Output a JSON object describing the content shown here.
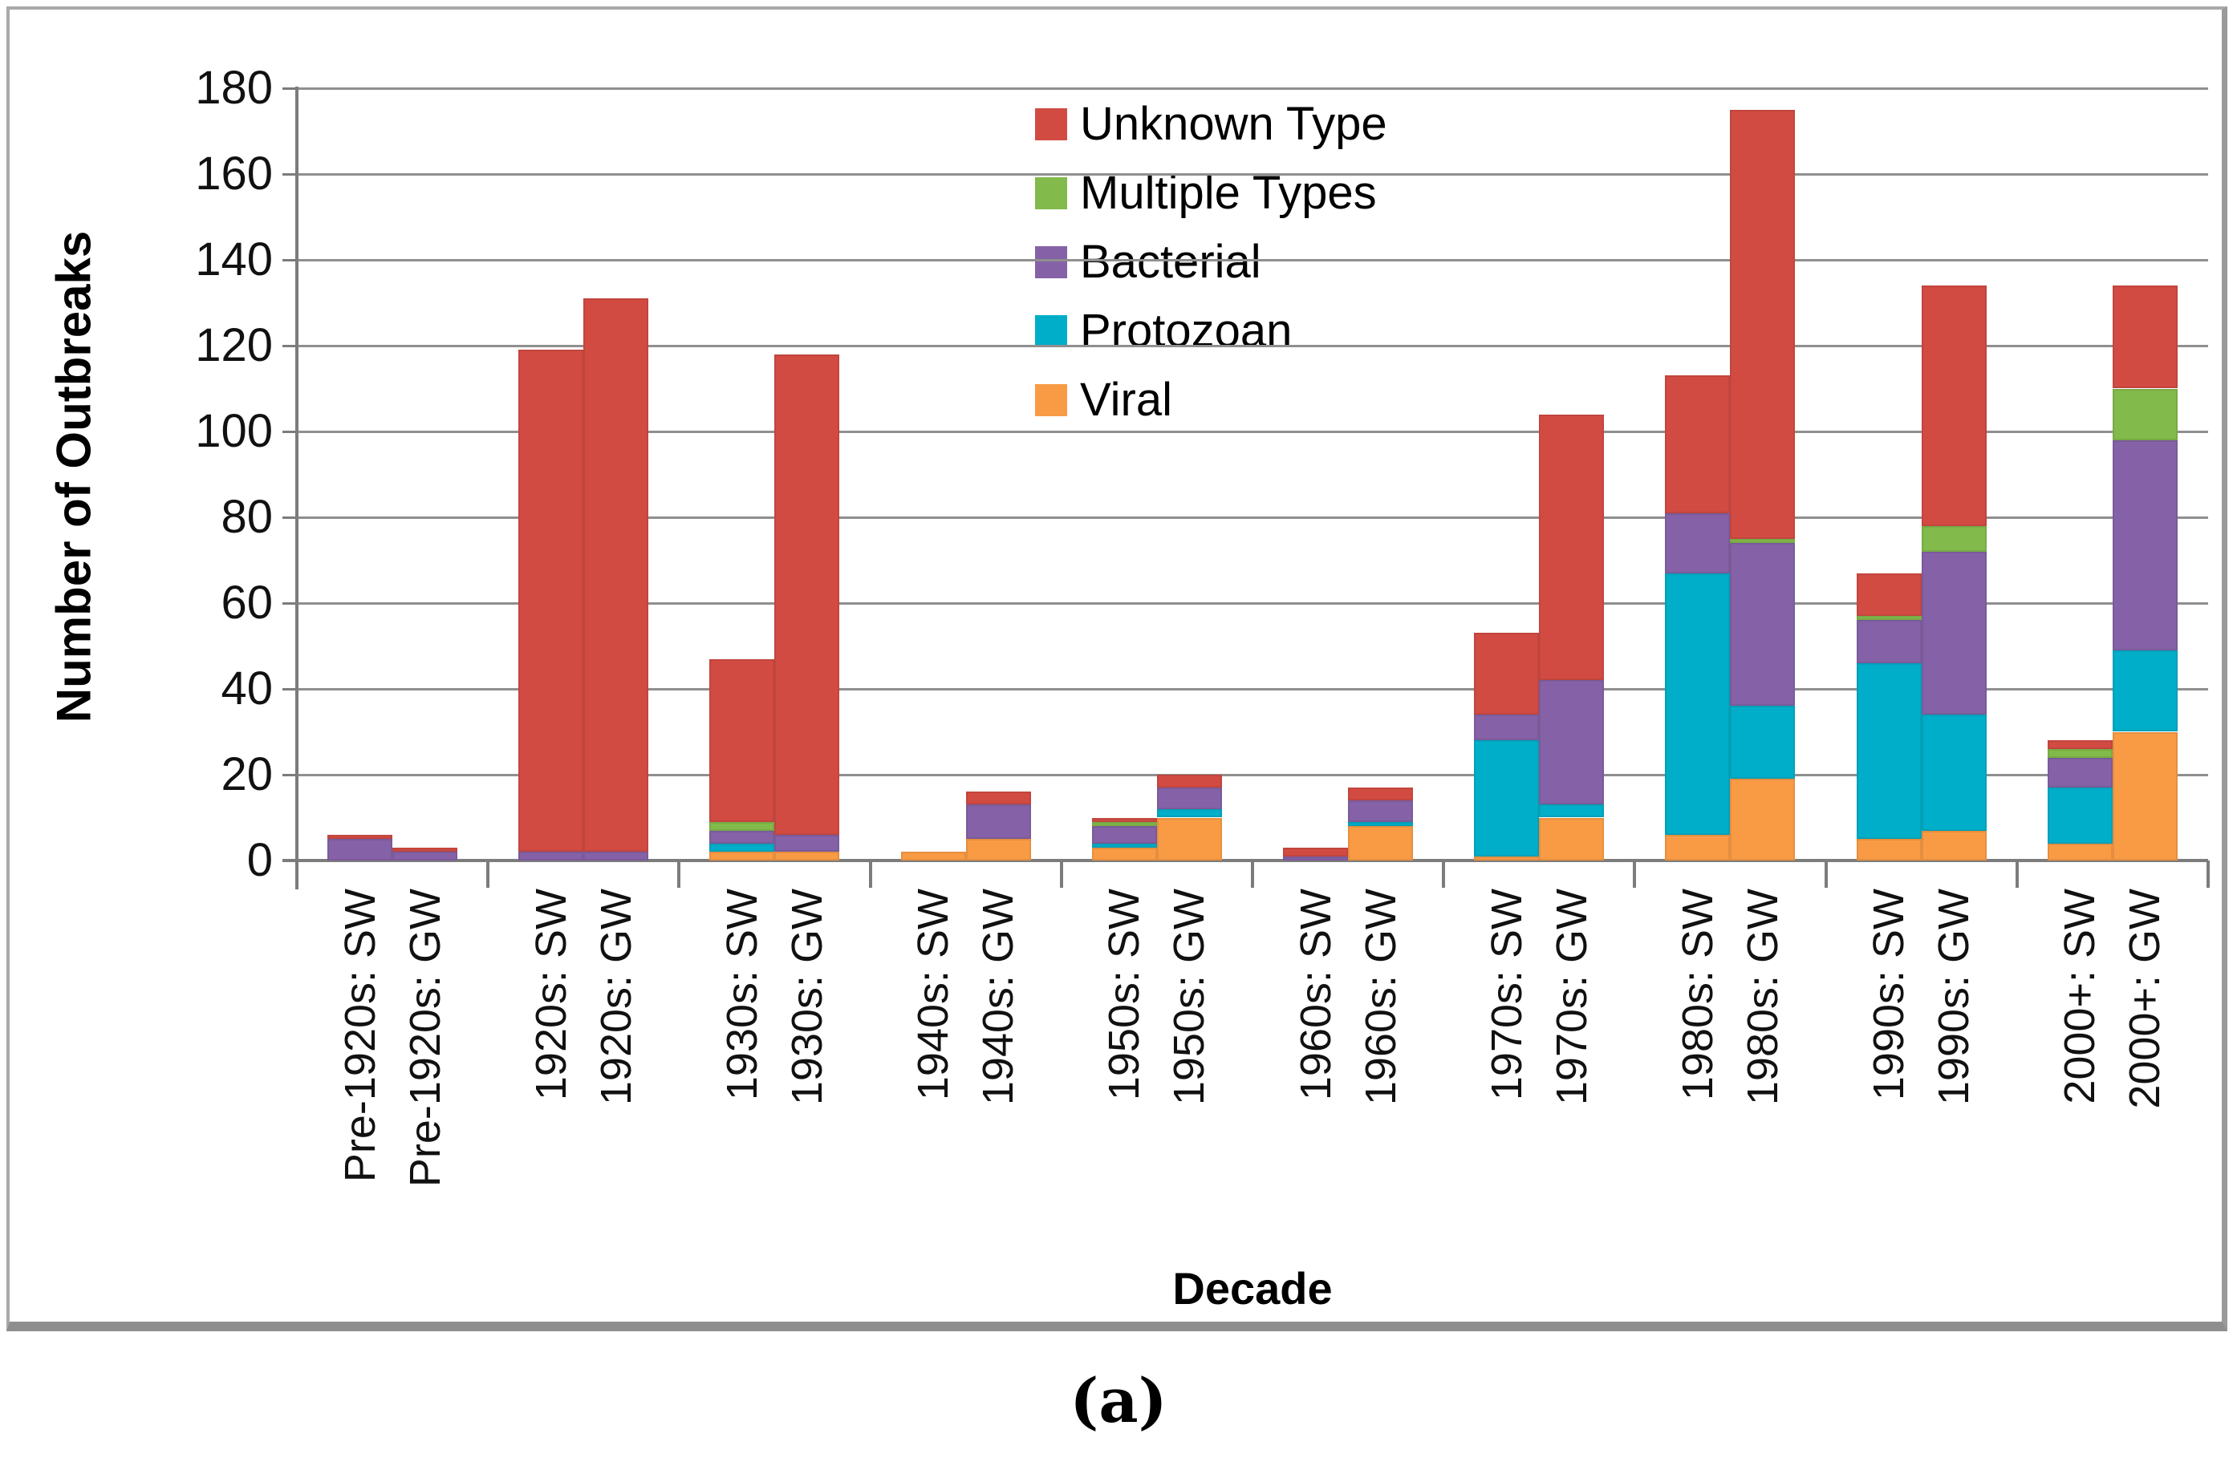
{
  "figure": {
    "caption": "(a)",
    "x_axis_title": "Decade",
    "y_axis_title": "Number of Outbreaks"
  },
  "chart_data": {
    "type": "bar",
    "stacked": true,
    "title": "",
    "xlabel": "Decade",
    "ylabel": "Number of Outbreaks",
    "ylim": [
      0,
      180
    ],
    "y_ticks": [
      0,
      20,
      40,
      60,
      80,
      100,
      120,
      140,
      160,
      180
    ],
    "grid": "horizontal",
    "legend_position": "top-center-inside",
    "categories": [
      "Pre-1920s: SW",
      "Pre-1920s: GW",
      "1920s: SW",
      "1920s: GW",
      "1930s: SW",
      "1930s: GW",
      "1940s: SW",
      "1940s: GW",
      "1950s: SW",
      "1950s: GW",
      "1960s: SW",
      "1960s: GW",
      "1970s: SW",
      "1970s: GW",
      "1980s: SW",
      "1980s: GW",
      "1990s: SW",
      "1990s: GW",
      "2000+: SW",
      "2000+: GW"
    ],
    "series": [
      {
        "name": "Viral",
        "color": "#F99B45",
        "values": [
          0,
          0,
          0,
          0,
          2,
          2,
          2,
          5,
          3,
          10,
          0,
          8,
          1,
          10,
          6,
          19,
          5,
          7,
          4,
          30
        ]
      },
      {
        "name": "Protozoan",
        "color": "#00AEC9",
        "values": [
          0,
          0,
          0,
          0,
          2,
          0,
          0,
          0,
          1,
          2,
          0,
          1,
          27,
          3,
          61,
          17,
          41,
          27,
          13,
          19
        ]
      },
      {
        "name": "Bacterial",
        "color": "#8562A7",
        "values": [
          5,
          2,
          2,
          2,
          3,
          4,
          0,
          8,
          4,
          5,
          1,
          5,
          6,
          29,
          14,
          38,
          10,
          38,
          7,
          49
        ]
      },
      {
        "name": "Multiple Types",
        "color": "#82BA4B",
        "values": [
          0,
          0,
          0,
          0,
          2,
          0,
          0,
          0,
          1,
          0,
          0,
          0,
          0,
          0,
          0,
          1,
          1,
          6,
          2,
          12
        ]
      },
      {
        "name": "Unknown Type",
        "color": "#D24B43",
        "values": [
          1,
          1,
          117,
          129,
          38,
          112,
          0,
          3,
          1,
          3,
          2,
          3,
          19,
          62,
          32,
          100,
          10,
          56,
          2,
          24
        ]
      }
    ],
    "legend_order": [
      "Unknown Type",
      "Multiple Types",
      "Bacterial",
      "Protozoan",
      "Viral"
    ],
    "totals": [
      6,
      3,
      119,
      131,
      47,
      118,
      2,
      16,
      10,
      20,
      3,
      17,
      53,
      104,
      113,
      175,
      67,
      134,
      28,
      134
    ]
  }
}
